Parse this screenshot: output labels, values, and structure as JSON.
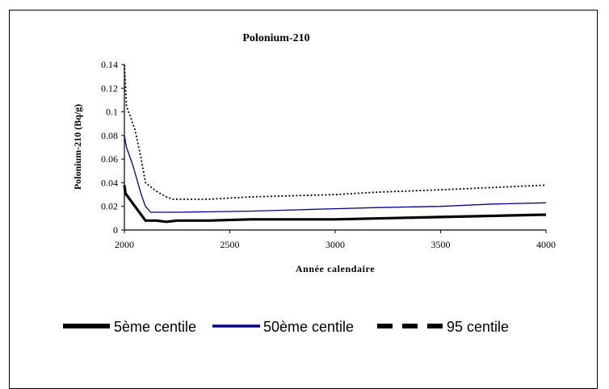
{
  "chart_data": {
    "type": "line",
    "title": "Polonium-210",
    "xlabel": "Année calendaire",
    "ylabel": "Polonium-210 (Bq/g)",
    "xlim": [
      2000,
      4000
    ],
    "ylim": [
      0,
      0.14
    ],
    "x_ticks": [
      "2000",
      "2500",
      "3000",
      "3500",
      "4000"
    ],
    "y_ticks": [
      "0",
      "0.02",
      "0.04",
      "0.06",
      "0.08",
      "0.1",
      "0.12",
      "0.14"
    ],
    "grid": false,
    "legend_position": "bottom",
    "series": [
      {
        "name": "5ème centile",
        "color": "#000000",
        "style": "solid-thick",
        "points": [
          [
            2000,
            0.038
          ],
          [
            2005,
            0.031
          ],
          [
            2050,
            0.02
          ],
          [
            2100,
            0.008
          ],
          [
            2150,
            0.008
          ],
          [
            2200,
            0.007
          ],
          [
            2250,
            0.008
          ],
          [
            2400,
            0.008
          ],
          [
            2600,
            0.009
          ],
          [
            3000,
            0.009
          ],
          [
            3500,
            0.011
          ],
          [
            4000,
            0.013
          ]
        ]
      },
      {
        "name": "50ème centile",
        "color": "#00008b",
        "style": "solid-thin",
        "points": [
          [
            2000,
            0.08
          ],
          [
            2010,
            0.07
          ],
          [
            2040,
            0.055
          ],
          [
            2080,
            0.03
          ],
          [
            2100,
            0.02
          ],
          [
            2125,
            0.015
          ],
          [
            2150,
            0.015
          ],
          [
            2250,
            0.015
          ],
          [
            2600,
            0.016
          ],
          [
            2800,
            0.017
          ],
          [
            3000,
            0.018
          ],
          [
            3200,
            0.019
          ],
          [
            3500,
            0.02
          ],
          [
            3750,
            0.022
          ],
          [
            4000,
            0.023
          ]
        ]
      },
      {
        "name": "95 centile",
        "color": "#000000",
        "style": "dotted",
        "points": [
          [
            2000,
            0.14
          ],
          [
            2010,
            0.105
          ],
          [
            2050,
            0.085
          ],
          [
            2080,
            0.06
          ],
          [
            2100,
            0.04
          ],
          [
            2150,
            0.033
          ],
          [
            2200,
            0.028
          ],
          [
            2230,
            0.026
          ],
          [
            2400,
            0.026
          ],
          [
            2600,
            0.028
          ],
          [
            2800,
            0.029
          ],
          [
            3000,
            0.03
          ],
          [
            3200,
            0.032
          ],
          [
            3500,
            0.034
          ],
          [
            3750,
            0.036
          ],
          [
            4000,
            0.038
          ]
        ]
      }
    ]
  }
}
